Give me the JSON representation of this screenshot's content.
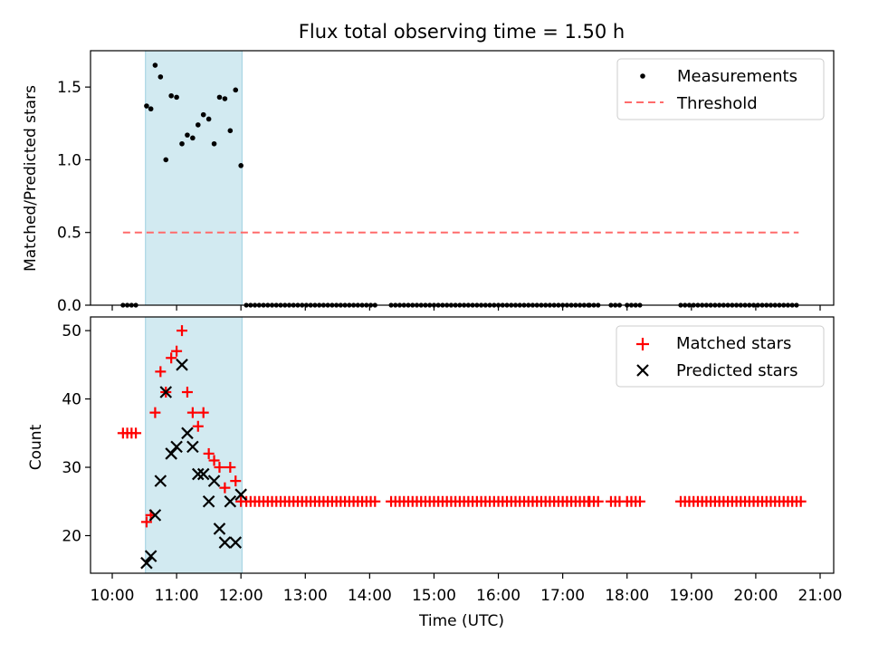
{
  "title": "Flux total observing time = 1.50 h",
  "chart_data": [
    {
      "type": "scatter",
      "ylabel": "Matched/Predicted stars",
      "xlabel": "",
      "xlim": [
        "10:00",
        "21:00"
      ],
      "ylim": [
        0,
        1.75
      ],
      "yticks": [
        0.0,
        0.5,
        1.0,
        1.5
      ],
      "ytick_labels": [
        "0.0",
        "0.5",
        "1.0",
        "1.5"
      ],
      "grid": false,
      "legend_position": "top-right",
      "shaded_interval": [
        "10:31",
        "12:01"
      ],
      "shade_color": "#add8e6",
      "legend": [
        {
          "label": "Measurements",
          "marker": "dot",
          "color": "#000000"
        },
        {
          "label": "Threshold",
          "marker": "dashed-line",
          "color": "#ff6b6b"
        }
      ],
      "threshold": {
        "value": 0.5,
        "x_start": "10:10",
        "x_end": "20:40",
        "color": "#ff6b6b"
      },
      "ratio_peak_points": [
        {
          "t": "10:32",
          "y": 1.37
        },
        {
          "t": "10:36",
          "y": 1.35
        },
        {
          "t": "10:40",
          "y": 1.65
        },
        {
          "t": "10:45",
          "y": 1.57
        },
        {
          "t": "10:50",
          "y": 1.0
        },
        {
          "t": "10:55",
          "y": 1.44
        },
        {
          "t": "11:00",
          "y": 1.43
        },
        {
          "t": "11:05",
          "y": 1.11
        },
        {
          "t": "11:10",
          "y": 1.17
        },
        {
          "t": "11:15",
          "y": 1.15
        },
        {
          "t": "11:20",
          "y": 1.24
        },
        {
          "t": "11:25",
          "y": 1.31
        },
        {
          "t": "11:30",
          "y": 1.28
        },
        {
          "t": "11:35",
          "y": 1.11
        },
        {
          "t": "11:40",
          "y": 1.43
        },
        {
          "t": "11:45",
          "y": 1.42
        },
        {
          "t": "11:50",
          "y": 1.2
        },
        {
          "t": "11:55",
          "y": 1.48
        },
        {
          "t": "12:00",
          "y": 0.96
        }
      ],
      "zero_segments": [
        {
          "start": "10:10",
          "end": "10:25",
          "step_min": 4
        },
        {
          "start": "12:05",
          "end": "14:05",
          "step_min": 4
        },
        {
          "start": "14:20",
          "end": "17:25",
          "step_min": 4
        },
        {
          "start": "17:25",
          "end": "17:35",
          "step_min": 4
        },
        {
          "start": "17:45",
          "end": "17:55",
          "step_min": 4
        },
        {
          "start": "18:00",
          "end": "18:15",
          "step_min": 4
        },
        {
          "start": "18:50",
          "end": "20:40",
          "step_min": 4
        }
      ]
    },
    {
      "type": "scatter",
      "ylabel": "Count",
      "xlabel": "Time (UTC)",
      "xlim": [
        "10:00",
        "21:00"
      ],
      "ylim": [
        14.5,
        52
      ],
      "yticks": [
        20,
        30,
        40,
        50
      ],
      "ytick_labels": [
        "20",
        "30",
        "40",
        "50"
      ],
      "xtick_labels": [
        "10:00",
        "11:00",
        "12:00",
        "13:00",
        "14:00",
        "15:00",
        "16:00",
        "17:00",
        "18:00",
        "19:00",
        "20:00",
        "21:00"
      ],
      "grid": false,
      "legend_position": "top-right",
      "shaded_interval": [
        "10:31",
        "12:01"
      ],
      "shade_color": "#add8e6",
      "legend": [
        {
          "label": "Matched stars",
          "marker": "plus",
          "color": "#ff0000"
        },
        {
          "label": "Predicted stars",
          "marker": "x",
          "color": "#000000"
        }
      ],
      "baseline_value": 25,
      "matched_early": {
        "start": "10:10",
        "end": "10:25",
        "step_min": 4,
        "value": 35
      },
      "matched_peak": [
        {
          "t": "10:32",
          "y": 22
        },
        {
          "t": "10:36",
          "y": 23
        },
        {
          "t": "10:40",
          "y": 38
        },
        {
          "t": "10:45",
          "y": 44
        },
        {
          "t": "10:50",
          "y": 41
        },
        {
          "t": "10:55",
          "y": 46
        },
        {
          "t": "11:00",
          "y": 47
        },
        {
          "t": "11:05",
          "y": 50
        },
        {
          "t": "11:10",
          "y": 41
        },
        {
          "t": "11:15",
          "y": 38
        },
        {
          "t": "11:20",
          "y": 36
        },
        {
          "t": "11:25",
          "y": 38
        },
        {
          "t": "11:30",
          "y": 32
        },
        {
          "t": "11:35",
          "y": 31
        },
        {
          "t": "11:40",
          "y": 30
        },
        {
          "t": "11:45",
          "y": 27
        },
        {
          "t": "11:50",
          "y": 30
        },
        {
          "t": "11:55",
          "y": 28
        },
        {
          "t": "12:00",
          "y": 25
        }
      ],
      "predicted_peak": [
        {
          "t": "10:32",
          "y": 16
        },
        {
          "t": "10:36",
          "y": 17
        },
        {
          "t": "10:40",
          "y": 23
        },
        {
          "t": "10:45",
          "y": 28
        },
        {
          "t": "10:50",
          "y": 41
        },
        {
          "t": "10:55",
          "y": 32
        },
        {
          "t": "11:00",
          "y": 33
        },
        {
          "t": "11:05",
          "y": 45
        },
        {
          "t": "11:10",
          "y": 35
        },
        {
          "t": "11:15",
          "y": 33
        },
        {
          "t": "11:20",
          "y": 29
        },
        {
          "t": "11:25",
          "y": 29
        },
        {
          "t": "11:30",
          "y": 25
        },
        {
          "t": "11:35",
          "y": 28
        },
        {
          "t": "11:40",
          "y": 21
        },
        {
          "t": "11:45",
          "y": 19
        },
        {
          "t": "11:50",
          "y": 25
        },
        {
          "t": "11:55",
          "y": 19
        },
        {
          "t": "12:00",
          "y": 26
        }
      ],
      "matched_late_segments": [
        {
          "start": "12:05",
          "end": "14:05",
          "step_min": 4
        },
        {
          "start": "14:20",
          "end": "17:25",
          "step_min": 4
        },
        {
          "start": "17:25",
          "end": "17:35",
          "step_min": 4
        },
        {
          "start": "17:45",
          "end": "17:55",
          "step_min": 4
        },
        {
          "start": "18:00",
          "end": "18:15",
          "step_min": 4
        },
        {
          "start": "18:50",
          "end": "20:45",
          "step_min": 4
        }
      ]
    }
  ]
}
